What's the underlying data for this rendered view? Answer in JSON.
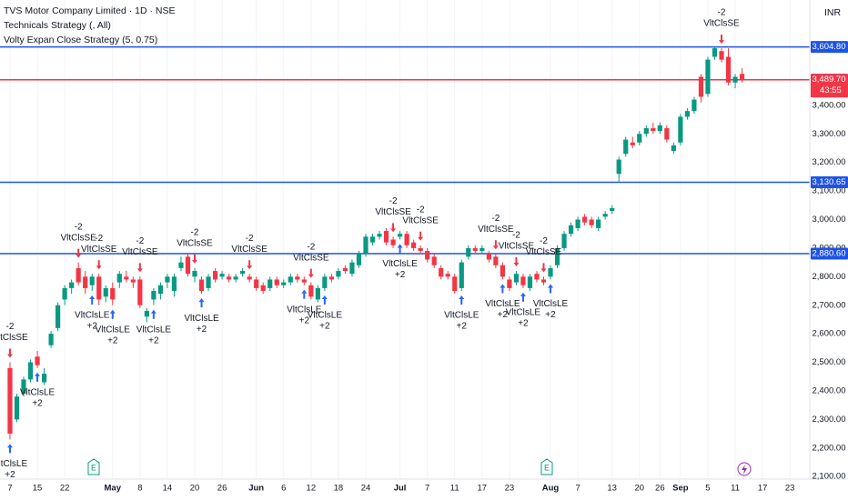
{
  "chart_data": {
    "type": "candlestick",
    "title": "TVS Motor Company Limited · 1D · NSE",
    "indicators": [
      "Technicals Strategy (, All)",
      "Volty Expan Close Strategy (5, 0.75)"
    ],
    "currency": "INR",
    "countdown": "43:55",
    "up_color": "#089981",
    "down_color": "#f23645",
    "candles": [
      [
        2480,
        2500,
        2230,
        2250
      ],
      [
        2300,
        2390,
        2290,
        2380
      ],
      [
        2390,
        2450,
        2380,
        2440
      ],
      [
        2440,
        2510,
        2430,
        2500
      ],
      [
        2520,
        2540,
        2480,
        2490
      ],
      [
        2430,
        2480,
        2420,
        2460
      ],
      [
        2560,
        2610,
        2550,
        2600
      ],
      [
        2620,
        2710,
        2610,
        2700
      ],
      [
        2720,
        2770,
        2700,
        2760
      ],
      [
        2760,
        2790,
        2740,
        2780
      ],
      [
        2830,
        2850,
        2770,
        2780
      ],
      [
        2800,
        2820,
        2740,
        2760
      ],
      [
        2770,
        2810,
        2750,
        2800
      ],
      [
        2800,
        2810,
        2700,
        2720
      ],
      [
        2730,
        2770,
        2710,
        2760
      ],
      [
        2760,
        2780,
        2700,
        2720
      ],
      [
        2780,
        2820,
        2760,
        2810
      ],
      [
        2800,
        2820,
        2780,
        2790
      ],
      [
        2790,
        2800,
        2760,
        2780
      ],
      [
        2790,
        2800,
        2690,
        2700
      ],
      [
        2660,
        2690,
        2640,
        2680
      ],
      [
        2720,
        2760,
        2700,
        2750
      ],
      [
        2740,
        2780,
        2720,
        2770
      ],
      [
        2780,
        2810,
        2760,
        2800
      ],
      [
        2750,
        2810,
        2730,
        2800
      ],
      [
        2830,
        2870,
        2820,
        2850
      ],
      [
        2870,
        2880,
        2800,
        2810
      ],
      [
        2800,
        2830,
        2780,
        2820
      ],
      [
        2790,
        2800,
        2740,
        2750
      ],
      [
        2760,
        2810,
        2750,
        2800
      ],
      [
        2820,
        2830,
        2780,
        2790
      ],
      [
        2800,
        2820,
        2790,
        2810
      ],
      [
        2800,
        2810,
        2780,
        2790
      ],
      [
        2790,
        2810,
        2780,
        2800
      ],
      [
        2810,
        2830,
        2800,
        2820
      ],
      [
        2800,
        2810,
        2780,
        2790
      ],
      [
        2790,
        2800,
        2750,
        2760
      ],
      [
        2770,
        2780,
        2740,
        2750
      ],
      [
        2760,
        2800,
        2750,
        2790
      ],
      [
        2790,
        2800,
        2760,
        2770
      ],
      [
        2770,
        2790,
        2760,
        2780
      ],
      [
        2780,
        2810,
        2770,
        2800
      ],
      [
        2800,
        2810,
        2780,
        2790
      ],
      [
        2790,
        2800,
        2770,
        2780
      ],
      [
        2770,
        2780,
        2720,
        2730
      ],
      [
        2720,
        2770,
        2710,
        2760
      ],
      [
        2760,
        2810,
        2750,
        2800
      ],
      [
        2800,
        2810,
        2780,
        2790
      ],
      [
        2800,
        2830,
        2790,
        2820
      ],
      [
        2830,
        2840,
        2810,
        2820
      ],
      [
        2810,
        2860,
        2800,
        2850
      ],
      [
        2840,
        2890,
        2830,
        2880
      ],
      [
        2880,
        2950,
        2870,
        2940
      ],
      [
        2920,
        2950,
        2910,
        2940
      ],
      [
        2940,
        2960,
        2930,
        2950
      ],
      [
        2960,
        2970,
        2910,
        2920
      ],
      [
        2930,
        2940,
        2900,
        2910
      ],
      [
        2940,
        2960,
        2930,
        2950
      ],
      [
        2950,
        2960,
        2900,
        2910
      ],
      [
        2920,
        2930,
        2890,
        2900
      ],
      [
        2900,
        2910,
        2880,
        2890
      ],
      [
        2890,
        2900,
        2850,
        2860
      ],
      [
        2870,
        2880,
        2830,
        2840
      ],
      [
        2830,
        2840,
        2790,
        2800
      ],
      [
        2810,
        2820,
        2790,
        2800
      ],
      [
        2800,
        2810,
        2740,
        2750
      ],
      [
        2760,
        2860,
        2750,
        2850
      ],
      [
        2870,
        2910,
        2860,
        2900
      ],
      [
        2900,
        2910,
        2880,
        2890
      ],
      [
        2890,
        2910,
        2880,
        2900
      ],
      [
        2880,
        2890,
        2850,
        2860
      ],
      [
        2870,
        2880,
        2830,
        2840
      ],
      [
        2840,
        2850,
        2790,
        2800
      ],
      [
        2790,
        2800,
        2750,
        2760
      ],
      [
        2780,
        2820,
        2770,
        2810
      ],
      [
        2800,
        2810,
        2760,
        2770
      ],
      [
        2760,
        2810,
        2750,
        2800
      ],
      [
        2810,
        2820,
        2780,
        2790
      ],
      [
        2790,
        2800,
        2770,
        2780
      ],
      [
        2800,
        2840,
        2790,
        2830
      ],
      [
        2840,
        2910,
        2830,
        2900
      ],
      [
        2900,
        2960,
        2890,
        2950
      ],
      [
        2950,
        2990,
        2940,
        2980
      ],
      [
        2970,
        3010,
        2960,
        3000
      ],
      [
        3010,
        3020,
        2980,
        2990
      ],
      [
        3000,
        3010,
        2970,
        2980
      ],
      [
        2970,
        3010,
        2960,
        3000
      ],
      [
        3010,
        3030,
        3000,
        3020
      ],
      [
        3030,
        3050,
        3020,
        3040
      ],
      [
        3160,
        3220,
        3130,
        3210
      ],
      [
        3230,
        3290,
        3220,
        3280
      ],
      [
        3270,
        3290,
        3250,
        3260
      ],
      [
        3270,
        3310,
        3260,
        3300
      ],
      [
        3300,
        3330,
        3290,
        3320
      ],
      [
        3320,
        3340,
        3300,
        3310
      ],
      [
        3310,
        3340,
        3300,
        3330
      ],
      [
        3320,
        3330,
        3270,
        3280
      ],
      [
        3240,
        3270,
        3230,
        3260
      ],
      [
        3270,
        3370,
        3260,
        3360
      ],
      [
        3360,
        3390,
        3350,
        3380
      ],
      [
        3380,
        3430,
        3370,
        3420
      ],
      [
        3500,
        3510,
        3410,
        3430
      ],
      [
        3440,
        3570,
        3430,
        3560
      ],
      [
        3570,
        3605,
        3560,
        3600
      ],
      [
        3590,
        3600,
        3550,
        3560
      ],
      [
        3570,
        3600,
        3470,
        3480
      ],
      [
        3480,
        3510,
        3460,
        3500
      ],
      [
        3510,
        3530,
        3480,
        3490
      ]
    ],
    "xlim": [
      -1.46,
      116.9
    ],
    "ylim": [
      2091,
      3769
    ],
    "xticks": [
      {
        "value": 0,
        "label": "7"
      },
      {
        "value": 4,
        "label": "15"
      },
      {
        "value": 8,
        "label": "22"
      },
      {
        "value": 15,
        "label": "May"
      },
      {
        "value": 19,
        "label": "8"
      },
      {
        "value": 23,
        "label": "14"
      },
      {
        "value": 27,
        "label": "20"
      },
      {
        "value": 31,
        "label": "26"
      },
      {
        "value": 36,
        "label": "Jun"
      },
      {
        "value": 40,
        "label": "6"
      },
      {
        "value": 44,
        "label": "12"
      },
      {
        "value": 48,
        "label": "18"
      },
      {
        "value": 52,
        "label": "24"
      },
      {
        "value": 57,
        "label": "Jul"
      },
      {
        "value": 61,
        "label": "7"
      },
      {
        "value": 65,
        "label": "11"
      },
      {
        "value": 69,
        "label": "17"
      },
      {
        "value": 73,
        "label": "23"
      },
      {
        "value": 79,
        "label": "Aug"
      },
      {
        "value": 83,
        "label": "7"
      },
      {
        "value": 88,
        "label": "13"
      },
      {
        "value": 92,
        "label": "20"
      },
      {
        "value": 95,
        "label": "26"
      },
      {
        "value": 98,
        "label": "Sep"
      },
      {
        "value": 102,
        "label": "5"
      },
      {
        "value": 106,
        "label": "11"
      },
      {
        "value": 110,
        "label": "17"
      },
      {
        "value": 114,
        "label": "23"
      }
    ],
    "yticks": [
      {
        "value": 2100,
        "label": "2,100.00"
      },
      {
        "value": 2200,
        "label": "2,200.00"
      },
      {
        "value": 2300,
        "label": "2,300.00"
      },
      {
        "value": 2400,
        "label": "2,400.00"
      },
      {
        "value": 2500,
        "label": "2,500.00"
      },
      {
        "value": 2600,
        "label": "2,600.00"
      },
      {
        "value": 2700,
        "label": "2,700.00"
      },
      {
        "value": 2800,
        "label": "2,800.00"
      },
      {
        "value": 2900,
        "label": "2,900.00"
      },
      {
        "value": 3000,
        "label": "3,000.00"
      },
      {
        "value": 3100,
        "label": "3,100.00"
      },
      {
        "value": 3200,
        "label": "3,200.00"
      },
      {
        "value": 3300,
        "label": "3,300.00"
      },
      {
        "value": 3400,
        "label": "3,400.00"
      }
    ],
    "grid": true,
    "price_levels": [
      {
        "value": 3604.8,
        "label": "3,604.80",
        "color": "#1e53e5",
        "line": true
      },
      {
        "value": 3490.15,
        "label": "3,490.15",
        "color": "#2962ff",
        "line": false
      },
      {
        "value": 3489.7,
        "label": "3,489.70",
        "color": "#f23645",
        "line": true
      },
      {
        "value": 3130.65,
        "label": "3,130.65",
        "color": "#1e53e5",
        "line": true
      },
      {
        "value": 2880.6,
        "label": "2,880.60",
        "color": "#1e53e5",
        "line": true
      }
    ],
    "signals": [
      {
        "candle": 0,
        "side": "short",
        "name": "VltClsSE",
        "qty": "-2"
      },
      {
        "candle": 10,
        "side": "short",
        "name": "VltClsSE",
        "qty": "-2"
      },
      {
        "candle": 13,
        "side": "short",
        "name": "VltClsSE",
        "qty": "-2"
      },
      {
        "candle": 19,
        "side": "short",
        "name": "VltClsSE",
        "qty": "-2"
      },
      {
        "candle": 27,
        "side": "short",
        "name": "VltClsSE",
        "qty": "-2"
      },
      {
        "candle": 35,
        "side": "short",
        "name": "VltClsSE",
        "qty": "-2"
      },
      {
        "candle": 44,
        "side": "short",
        "name": "VltClsSE",
        "qty": "-2"
      },
      {
        "candle": 56,
        "side": "short",
        "name": "VltClsSE",
        "qty": "-2"
      },
      {
        "candle": 60,
        "side": "short",
        "name": "VltClsSE",
        "qty": "-2"
      },
      {
        "candle": 71,
        "side": "short",
        "name": "VltClsSE",
        "qty": "-2"
      },
      {
        "candle": 74,
        "side": "short",
        "name": "VltClsSE",
        "qty": "-2"
      },
      {
        "candle": 78,
        "side": "short",
        "name": "VltClsSE",
        "qty": "-2"
      },
      {
        "candle": 104,
        "side": "short",
        "name": "VltClsSE",
        "qty": "-2"
      },
      {
        "candle": 0,
        "side": "long",
        "name": "VltClsLE",
        "qty": "+2"
      },
      {
        "candle": 4,
        "side": "long",
        "name": "VltClsLE",
        "qty": "+2"
      },
      {
        "candle": 12,
        "side": "long",
        "name": "VltClsLE",
        "qty": "+2"
      },
      {
        "candle": 15,
        "side": "long",
        "name": "VltClsLE",
        "qty": "+2"
      },
      {
        "candle": 21,
        "side": "long",
        "name": "VltClsLE",
        "qty": "+2"
      },
      {
        "candle": 28,
        "side": "long",
        "name": "VltClsLE",
        "qty": "+2"
      },
      {
        "candle": 43,
        "side": "long",
        "name": "VltClsLE",
        "qty": "+2"
      },
      {
        "candle": 46,
        "side": "long",
        "name": "VltClsLE",
        "qty": "+2"
      },
      {
        "candle": 57,
        "side": "long",
        "name": "VltClsLE",
        "qty": "+2"
      },
      {
        "candle": 66,
        "side": "long",
        "name": "VltClsLE",
        "qty": "+2"
      },
      {
        "candle": 72,
        "side": "long",
        "name": "VltClsLE",
        "qty": "+2"
      },
      {
        "candle": 75,
        "side": "long",
        "name": "VltClsLE",
        "qty": "+2"
      },
      {
        "candle": 79,
        "side": "long",
        "name": "VltClsLE",
        "qty": "+2"
      }
    ]
  }
}
